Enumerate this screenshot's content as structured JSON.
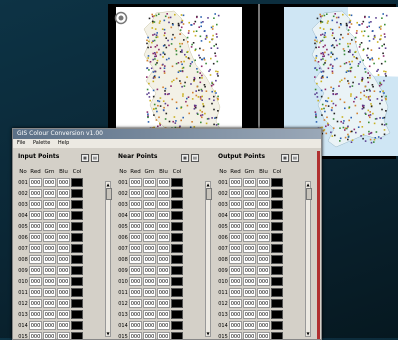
{
  "window": {
    "title": "GIS Colour Conversion v1.00",
    "menu": [
      "File",
      "Palette",
      "Help"
    ]
  },
  "groups": [
    {
      "title": "Input Points",
      "cols": [
        "No",
        "Red",
        "Grn",
        "Blu",
        "Col"
      ]
    },
    {
      "title": "Near Points",
      "cols": [
        "No",
        "Red",
        "Grn",
        "Blu",
        "Col"
      ]
    },
    {
      "title": "Output Points",
      "cols": [
        "No",
        "Red",
        "Grn",
        "Blu",
        "Col"
      ]
    }
  ],
  "rows": {
    "numbers": [
      "001",
      "002",
      "003",
      "004",
      "005",
      "006",
      "007",
      "008",
      "009",
      "010",
      "011",
      "012",
      "013",
      "014",
      "015"
    ],
    "values": [
      "000",
      "000",
      "000"
    ]
  },
  "colors": {
    "swatch": "#000000",
    "window_bg": "#d4d0c8"
  },
  "icons": {
    "map_tool": "crosshair-circle-icon"
  }
}
